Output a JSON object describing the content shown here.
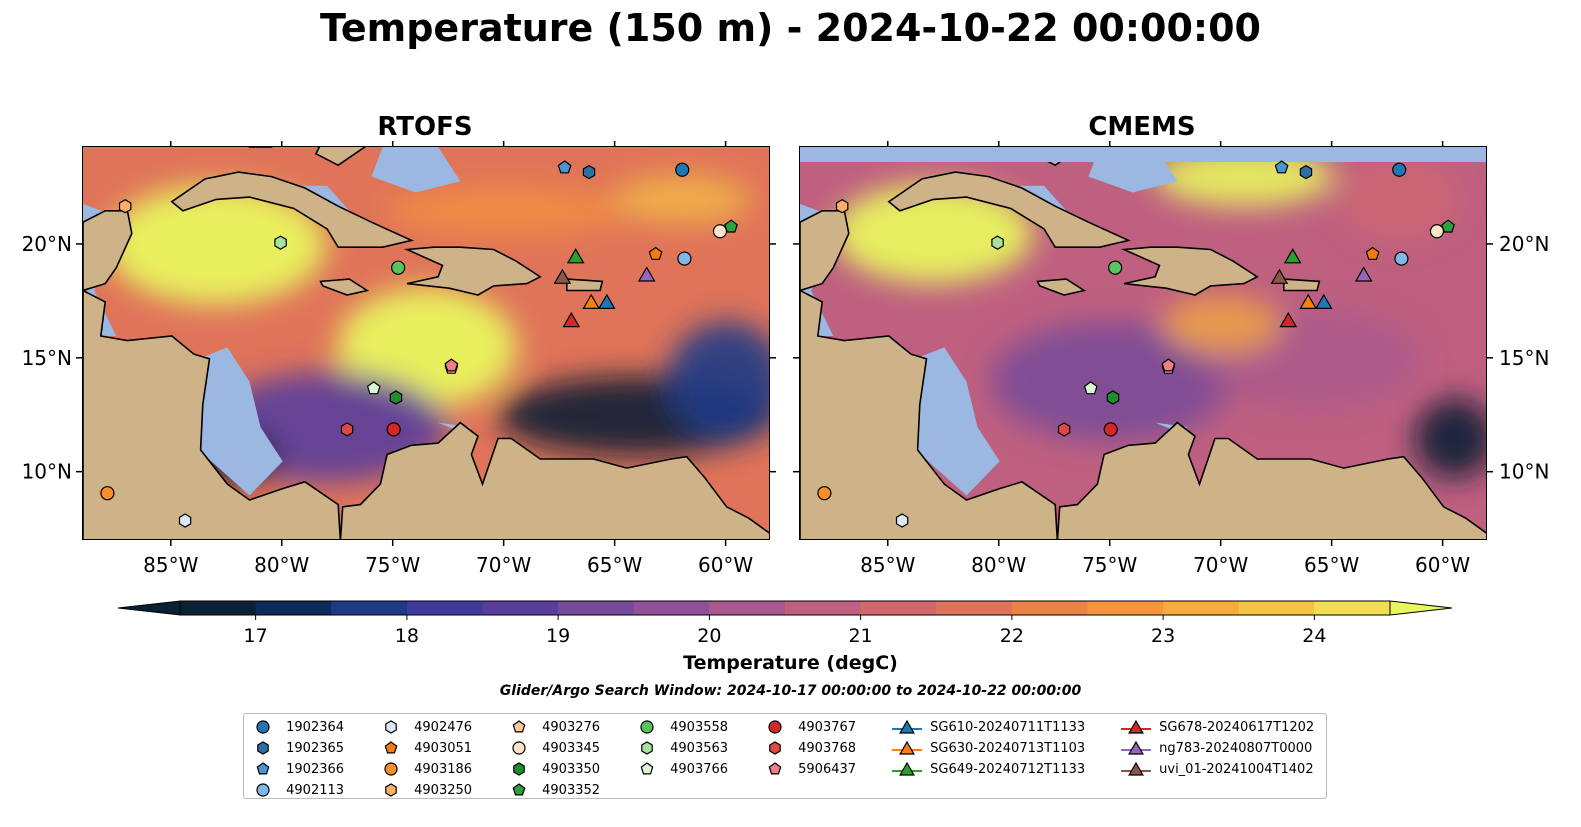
{
  "title": "Temperature (150 m) - 2024-10-22 00:00:00",
  "panels": [
    {
      "title": "RTOFS"
    },
    {
      "title": "CMEMS"
    }
  ],
  "axes": {
    "lon_ticks": [
      "85°W",
      "80°W",
      "75°W",
      "70°W",
      "65°W",
      "60°W"
    ],
    "lat_ticks": [
      "20°N",
      "15°N",
      "10°N"
    ]
  },
  "colorbar": {
    "label": "Temperature (degC)",
    "ticks": [
      "17",
      "18",
      "19",
      "20",
      "21",
      "22",
      "23",
      "24"
    ],
    "range": [
      16.5,
      24.5
    ],
    "colormap": [
      "#0a2033",
      "#0d2a5a",
      "#1f3b86",
      "#3e3a9c",
      "#5a3e9b",
      "#764a99",
      "#8f5096",
      "#a7588e",
      "#bf6080",
      "#d26a6d",
      "#e0745a",
      "#ec8346",
      "#f5963c",
      "#f6ac3c",
      "#f5c443",
      "#f1de55",
      "#e8f65e"
    ]
  },
  "search_window": "Glider/Argo Search Window: 2024-10-17 00:00:00 to 2024-10-22 00:00:00",
  "chart_data": {
    "type": "map",
    "extent": {
      "lon": [
        -89,
        -58
      ],
      "lat": [
        7,
        24.3
      ]
    },
    "land_color": "#cfb388",
    "shelf_color": "#9ab8e2",
    "floats": [
      {
        "id": "1902364",
        "marker": "circle",
        "color": "#1f77b4",
        "lon": -62,
        "lat": 23.3
      },
      {
        "id": "1902365",
        "marker": "hexagon",
        "color": "#2d6fa5",
        "lon": -66.2,
        "lat": 23.2
      },
      {
        "id": "1902366",
        "marker": "pentagon",
        "color": "#4b95d3",
        "lon": -67.3,
        "lat": 23.4
      },
      {
        "id": "4902113",
        "marker": "circle",
        "color": "#7fb8e6",
        "lon": -61.9,
        "lat": 19.4
      },
      {
        "id": "4902476",
        "marker": "hexagon",
        "color": "#dbe9f7",
        "lon": -84.4,
        "lat": 7.9
      },
      {
        "id": "4903051",
        "marker": "pentagon",
        "color": "#f47c0c",
        "lon": -63.2,
        "lat": 19.6
      },
      {
        "id": "4903186",
        "marker": "circle",
        "color": "#f88e2c",
        "lon": -87.9,
        "lat": 9.1
      },
      {
        "id": "4903250",
        "marker": "hexagon",
        "color": "#fab067",
        "lon": -87.1,
        "lat": 21.7
      },
      {
        "id": "4903276",
        "marker": "pentagon",
        "color": "#fdc896",
        "lon": -72.4,
        "lat": 14.6
      },
      {
        "id": "4903345",
        "marker": "circle",
        "color": "#fde3c8",
        "lon": -60.3,
        "lat": 20.6
      },
      {
        "id": "4903350",
        "marker": "hexagon",
        "color": "#1f8f2a",
        "lon": -74.9,
        "lat": 13.3
      },
      {
        "id": "4903352",
        "marker": "pentagon",
        "color": "#2fa13a",
        "lon": -59.8,
        "lat": 20.8
      },
      {
        "id": "4903558",
        "marker": "circle",
        "color": "#59c35f",
        "lon": -74.8,
        "lat": 19.0
      },
      {
        "id": "4903563",
        "marker": "hexagon",
        "color": "#a8e29f",
        "lon": -80.1,
        "lat": 20.1
      },
      {
        "id": "4903766",
        "marker": "pentagon",
        "color": "#dcf5d4",
        "lon": -75.9,
        "lat": 13.7
      },
      {
        "id": "4903767",
        "marker": "circle",
        "color": "#d62728",
        "lon": -75.0,
        "lat": 11.9
      },
      {
        "id": "4903768",
        "marker": "hexagon",
        "color": "#e04848",
        "lon": -77.1,
        "lat": 11.9
      },
      {
        "id": "5906437",
        "marker": "pentagon",
        "color": "#ef7e88",
        "lon": -72.4,
        "lat": 14.7
      }
    ],
    "gliders": [
      {
        "id": "SG610-20240711T1133",
        "color": "#1f77b4",
        "lon": -65.4,
        "lat": 17.5
      },
      {
        "id": "SG630-20240713T1103",
        "color": "#ff7f0e",
        "lon": -66.1,
        "lat": 17.5
      },
      {
        "id": "SG649-20240712T1133",
        "color": "#2ca02c",
        "lon": -66.8,
        "lat": 19.5
      },
      {
        "id": "SG678-20240617T1202",
        "color": "#d62728",
        "lon": -67.0,
        "lat": 16.7
      },
      {
        "id": "ng783-20240807T0000",
        "color": "#9467bd",
        "lon": -63.6,
        "lat": 18.7
      },
      {
        "id": "uvi_01-20241004T1402",
        "color": "#8c564b",
        "lon": -67.4,
        "lat": 18.6
      }
    ]
  },
  "legend": {
    "columns": [
      [
        {
          "label": "1902364",
          "marker": "circle",
          "color": "#1f77b4"
        },
        {
          "label": "1902365",
          "marker": "hexagon",
          "color": "#2d6fa5"
        },
        {
          "label": "1902366",
          "marker": "pentagon",
          "color": "#4b95d3"
        },
        {
          "label": "4902113",
          "marker": "circle",
          "color": "#7fb8e6"
        }
      ],
      [
        {
          "label": "4902476",
          "marker": "hexagon",
          "color": "#dbe9f7"
        },
        {
          "label": "4903051",
          "marker": "pentagon",
          "color": "#f47c0c"
        },
        {
          "label": "4903186",
          "marker": "circle",
          "color": "#f88e2c"
        },
        {
          "label": "4903250",
          "marker": "hexagon",
          "color": "#fab067"
        }
      ],
      [
        {
          "label": "4903276",
          "marker": "pentagon",
          "color": "#fdc896"
        },
        {
          "label": "4903345",
          "marker": "circle",
          "color": "#fde3c8"
        },
        {
          "label": "4903350",
          "marker": "hexagon",
          "color": "#1f8f2a"
        },
        {
          "label": "4903352",
          "marker": "pentagon",
          "color": "#2fa13a"
        }
      ],
      [
        {
          "label": "4903558",
          "marker": "circle",
          "color": "#59c35f"
        },
        {
          "label": "4903563",
          "marker": "hexagon",
          "color": "#a8e29f"
        },
        {
          "label": "4903766",
          "marker": "pentagon",
          "color": "#dcf5d4"
        }
      ],
      [
        {
          "label": "4903767",
          "marker": "circle",
          "color": "#d62728"
        },
        {
          "label": "4903768",
          "marker": "hexagon",
          "color": "#e04848"
        },
        {
          "label": "5906437",
          "marker": "pentagon",
          "color": "#ef7e88"
        }
      ],
      [
        {
          "label": "SG610-20240711T1133",
          "marker": "triangle",
          "color": "#1f77b4"
        },
        {
          "label": "SG630-20240713T1103",
          "marker": "triangle",
          "color": "#ff7f0e"
        },
        {
          "label": "SG649-20240712T1133",
          "marker": "triangle",
          "color": "#2ca02c"
        }
      ],
      [
        {
          "label": "SG678-20240617T1202",
          "marker": "triangle",
          "color": "#d62728"
        },
        {
          "label": "ng783-20240807T0000",
          "marker": "triangle",
          "color": "#9467bd"
        },
        {
          "label": "uvi_01-20241004T1402",
          "marker": "triangle",
          "color": "#8c564b"
        }
      ]
    ]
  }
}
